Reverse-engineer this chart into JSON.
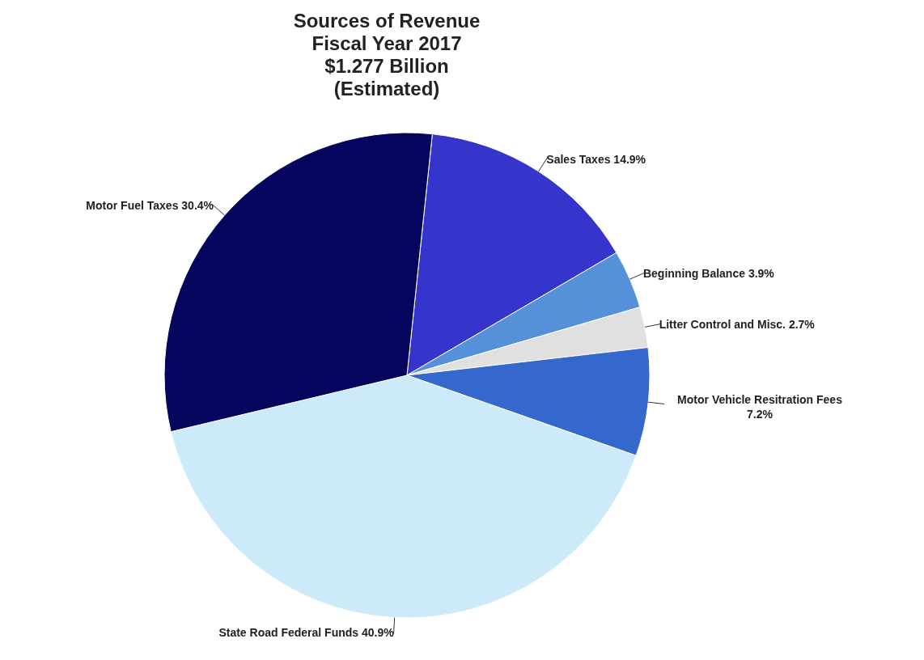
{
  "chart_data": {
    "type": "pie",
    "title": "Sources of Revenue\nFiscal Year 2017\n$1.277 Billion\n(Estimated)",
    "categories": [
      "Sales Taxes",
      "Beginning Balance",
      "Litter Control and Misc.",
      "Motor Vehicle Resitration Fees",
      "State Road Federal Funds",
      "Motor Fuel Taxes"
    ],
    "values": [
      14.9,
      3.9,
      2.7,
      7.2,
      40.9,
      30.4
    ],
    "value_labels": [
      "14.9%",
      "3.9%",
      "2.7%",
      "7.2%",
      "40.9%",
      "30.4%"
    ],
    "colors": [
      "#3535cc",
      "#5590d8",
      "#e0e0e0",
      "#3468cc",
      "#cdeafa",
      "#05055e"
    ],
    "legend": false
  }
}
